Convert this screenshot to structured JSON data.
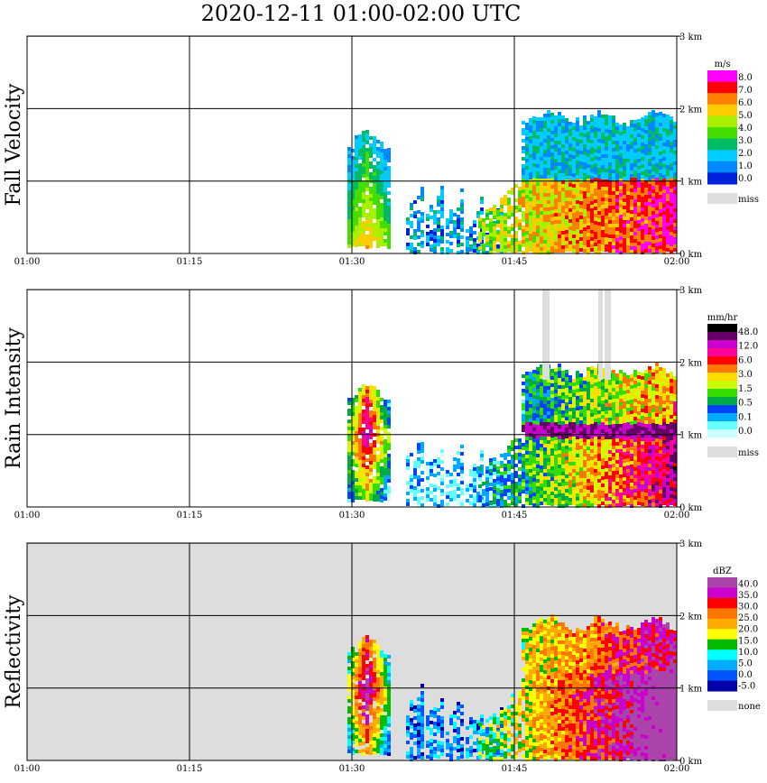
{
  "title": "2020-12-11   01:00-02:00 UTC",
  "x_tick_labels": [
    "01:00",
    "01:15",
    "01:30",
    "01:45",
    "02:00"
  ],
  "y_tick_labels": [
    "0 km",
    "1 km",
    "2 km",
    "3 km"
  ],
  "missing_color": "#dddddd",
  "chart_data": [
    {
      "type": "heatmap",
      "title": "",
      "ylabel": "Fall Velocity",
      "x_range": [
        "01:00",
        "02:00"
      ],
      "y_range_km": [
        0,
        3.0
      ],
      "grid": true,
      "background": "#ffffff",
      "colorbar": {
        "unit": "m/s",
        "labels": [
          "8.0",
          "7.0",
          "6.0",
          "5.0",
          "4.0",
          "3.0",
          "2.0",
          "1.0",
          "0.0"
        ],
        "colors": [
          "#ff00ff",
          "#ff0000",
          "#ff7f00",
          "#ffcc00",
          "#aaee00",
          "#44dd00",
          "#00bb66",
          "#00ccff",
          "#0088ff",
          "#0022dd"
        ],
        "miss_label": "miss"
      }
    },
    {
      "type": "heatmap",
      "title": "",
      "ylabel": "Rain Intensity",
      "x_range": [
        "01:00",
        "02:00"
      ],
      "y_range_km": [
        0,
        3.0
      ],
      "grid": true,
      "background": "#ffffff",
      "colorbar": {
        "unit": "mm/hr",
        "labels": [
          "48.0",
          "12.0",
          "6.0",
          "3.0",
          "1.5",
          "0.5",
          "0.1",
          "0.0"
        ],
        "colors": [
          "#000000",
          "#660066",
          "#cc00cc",
          "#ff0099",
          "#ff0000",
          "#ff7700",
          "#ffdd00",
          "#ccff00",
          "#33dd00",
          "#00aa44",
          "#0044ff",
          "#00aaff",
          "#66ffff",
          "#ccffff"
        ],
        "miss_label": "miss"
      }
    },
    {
      "type": "heatmap",
      "title": "",
      "ylabel": "Reflectivity",
      "x_range": [
        "01:00",
        "02:00"
      ],
      "y_range_km": [
        0,
        3.0
      ],
      "grid": true,
      "background": "#dddddd",
      "colorbar": {
        "unit": "dBZ",
        "labels": [
          "40.0",
          "35.0",
          "30.0",
          "25.0",
          "20.0",
          "15.0",
          "10.0",
          "5.0",
          "0.0",
          "-5.0"
        ],
        "colors": [
          "#aa44aa",
          "#cc00cc",
          "#ff0000",
          "#ff7700",
          "#ffaa00",
          "#ffff00",
          "#00bb00",
          "#00ffff",
          "#00aaff",
          "#0055ff",
          "#0000aa"
        ],
        "miss_label": "none"
      }
    }
  ]
}
